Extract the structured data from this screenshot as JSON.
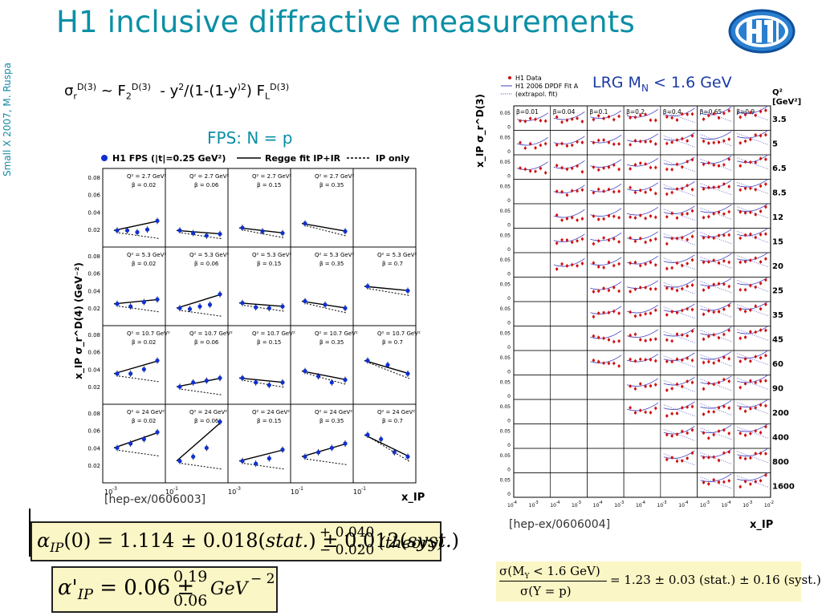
{
  "side_credit": "Small X 2007, M. Ruspa",
  "title": "H1 inclusive diffractive measurements",
  "formula": {
    "sigma": "σ",
    "sigma_sub": "r",
    "sup1": "D(3)",
    "mid": " ~ F",
    "f_sub": "2",
    "sup2": "D(3)",
    "rest": "  - y",
    "y_sup": "2",
    "rest2": "/(1-(1-y",
    "rest2_sup": ")2",
    "rest3": ") F",
    "fl_sub": "L",
    "sup3": "D(3)"
  },
  "fps_label": "FPS: N = p",
  "lrg_label": {
    "text": "LRG M",
    "sub": "N",
    "rest": " < 1.6 GeV"
  },
  "ref_left": "[hep-ex/0606003]",
  "ref_right": "[hep-ex/0606004]",
  "left_chart": {
    "legend": {
      "data": "H1 FPS (|t|=0.25 GeV²)",
      "fit": "Regge fit IP+IR",
      "ip": "IP only"
    },
    "ylabel": "x_IP σ_r^D(4) (GeV⁻²)",
    "xlabel": "x_IP",
    "yticks": [
      "0.08",
      "0.06",
      "0.04",
      "0.02"
    ],
    "xticks": [
      "10",
      "10",
      "10",
      "10",
      "10"
    ],
    "xtick_exps": [
      "-3",
      "-1",
      "-3",
      "-1",
      "-1"
    ],
    "panels": [
      [
        {
          "q2": "Q² = 2.7 GeV²",
          "beta": "β = 0.02"
        },
        {
          "q2": "Q² = 2.7 GeV²",
          "beta": "β = 0.06"
        },
        {
          "q2": "Q² = 2.7 GeV²",
          "beta": "β = 0.15"
        },
        {
          "q2": "Q² = 2.7 GeV²",
          "beta": "β = 0.35"
        },
        {
          "q2": "",
          "beta": ""
        }
      ],
      [
        {
          "q2": "Q² = 5.3 GeV²",
          "beta": "β = 0.02"
        },
        {
          "q2": "Q² = 5.3 GeV²",
          "beta": "β = 0.06"
        },
        {
          "q2": "Q² = 5.3 GeV²",
          "beta": "β = 0.15"
        },
        {
          "q2": "Q² = 5.3 GeV²",
          "beta": "β = 0.35"
        },
        {
          "q2": "Q² = 5.3 GeV²",
          "beta": "β = 0.7"
        }
      ],
      [
        {
          "q2": "Q² = 10.7 GeV²",
          "beta": "β = 0.02"
        },
        {
          "q2": "Q² = 10.7 GeV²",
          "beta": "β = 0.06"
        },
        {
          "q2": "Q² = 10.7 GeV²",
          "beta": "β = 0.15"
        },
        {
          "q2": "Q² = 10.7 GeV²",
          "beta": "β = 0.35"
        },
        {
          "q2": "Q² = 10.7 GeV²",
          "beta": "β = 0.7"
        }
      ],
      [
        {
          "q2": "Q² = 24 GeV²",
          "beta": "β = 0.02"
        },
        {
          "q2": "Q² = 24 GeV²",
          "beta": "β = 0.06"
        },
        {
          "q2": "Q² = 24 GeV²",
          "beta": "β = 0.15"
        },
        {
          "q2": "Q² = 24 GeV²",
          "beta": "β = 0.35"
        },
        {
          "q2": "Q² = 24 GeV²",
          "beta": "β = 0.7"
        }
      ]
    ],
    "points": [
      [
        [
          0.019,
          0.019,
          0.017,
          0.02,
          0.03
        ],
        [
          0.019,
          0.016,
          0.013,
          0.015
        ],
        [
          0.022,
          0.018,
          0.016
        ],
        [
          0.027,
          0.018
        ],
        []
      ],
      [
        [
          0.025,
          0.022,
          0.027,
          0.03
        ],
        [
          0.02,
          0.019,
          0.022,
          0.024,
          0.036
        ],
        [
          0.026,
          0.021,
          0.02,
          0.022
        ],
        [
          0.028,
          0.024,
          0.02
        ],
        [
          0.045,
          0.04
        ]
      ],
      [
        [
          0.035,
          0.035,
          0.04,
          0.05
        ],
        [
          0.02,
          0.025,
          0.027,
          0.03
        ],
        [
          0.03,
          0.025,
          0.022,
          0.025
        ],
        [
          0.038,
          0.032,
          0.025,
          0.028
        ],
        [
          0.05,
          0.045,
          0.035
        ]
      ],
      [
        [
          0.04,
          0.045,
          0.05,
          0.058
        ],
        [
          0.025,
          0.03,
          0.04,
          0.07
        ],
        [
          0.025,
          0.022,
          0.028,
          0.038
        ],
        [
          0.03,
          0.035,
          0.04,
          0.045
        ],
        [
          0.055,
          0.05,
          0.035,
          0.03
        ]
      ]
    ]
  },
  "right_chart": {
    "legend": {
      "data": "H1 Data",
      "fit": "H1 2006 DPDF Fit A",
      "extrap": "(extrapol. fit)"
    },
    "ylabel": "x_IP σ_r^D(3)",
    "xlabel": "x_IP",
    "q2_header": "Q²",
    "q2_unit": "[GeV²]",
    "q2_values": [
      "3.5",
      "5",
      "6.5",
      "8.5",
      "12",
      "15",
      "20",
      "25",
      "35",
      "45",
      "60",
      "90",
      "200",
      "400",
      "800",
      "1600"
    ],
    "betas": [
      "β=0.01",
      "β=0.04",
      "β=0.1",
      "β=0.2",
      "β=0.4",
      "β=0.65",
      "β=0.9"
    ],
    "ytick_top": "0.05",
    "ytick_zero": "0",
    "xticks": [
      "10",
      "10",
      "10",
      "10",
      "10",
      "10",
      "10",
      "10",
      "10",
      "10",
      "10",
      "10"
    ],
    "xtick_exps": [
      "-4",
      "-3",
      "-4",
      "-3",
      "-4",
      "-3",
      "-4",
      "-3",
      "-4",
      "-3",
      "-4",
      "-3"
    ],
    "xtick_last": "10",
    "xtick_last_exp": "-2"
  },
  "equations": {
    "eq1": {
      "alpha": "α",
      "sub": "IP",
      "body": "(0) = 1.114 ± 0.018(",
      "stat": "stat.",
      "mid": ") ± 0.012(",
      "syst": "syst.",
      "close": ")",
      "up": "+ 0.040",
      "down": "− 0.020",
      "theory": "(theory)"
    },
    "eq2": {
      "alpha": "α'",
      "sub": "IP",
      "body": " = 0.06 ±",
      "up": "0.19",
      "down": "0.06",
      "unit": "GeV",
      "exp": "− 2"
    },
    "eq3": {
      "num": "σ(M",
      "num_sub": "Y",
      "num_rest": " < 1.6 GeV)",
      "den": "σ(Y = p)",
      "rhs": "= 1.23 ± 0.03 (stat.) ± 0.16 (syst.)"
    }
  }
}
